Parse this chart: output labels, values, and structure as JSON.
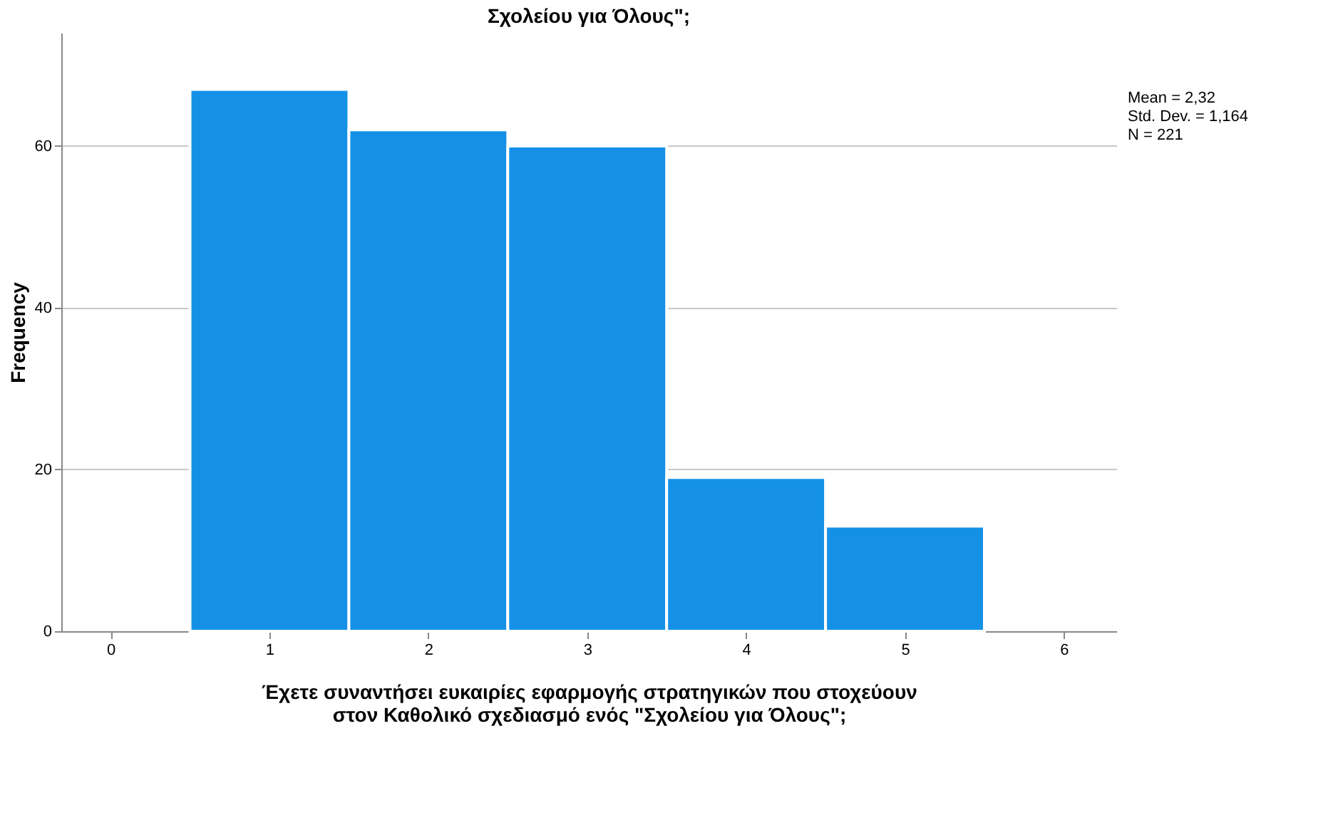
{
  "chart_data": {
    "type": "histogram",
    "title": "Σχολείου για Όλους\";",
    "xlabel": "Έχετε συναντήσει ευκαιρίες εφαρμογής στρατηγικών που στοχεύουν\nστον Καθολικό σχεδιασμό ενός \"Σχολείου για Όλους\";",
    "ylabel": "Frequency",
    "bins": [
      0.5,
      1.5,
      2.5,
      3.5,
      4.5,
      5.5
    ],
    "values": [
      67,
      62,
      60,
      19,
      13
    ],
    "color": "#1491e6",
    "xlim": [
      -0.31,
      6.33
    ],
    "xticks": [
      0,
      1,
      2,
      3,
      4,
      5,
      6
    ],
    "ylim": [
      0,
      74
    ],
    "yticks": [
      0,
      20,
      40,
      60
    ],
    "grid": "y",
    "annotations": [
      "Mean = 2,32",
      "Std. Dev. = 1,164",
      "N = 221"
    ]
  }
}
